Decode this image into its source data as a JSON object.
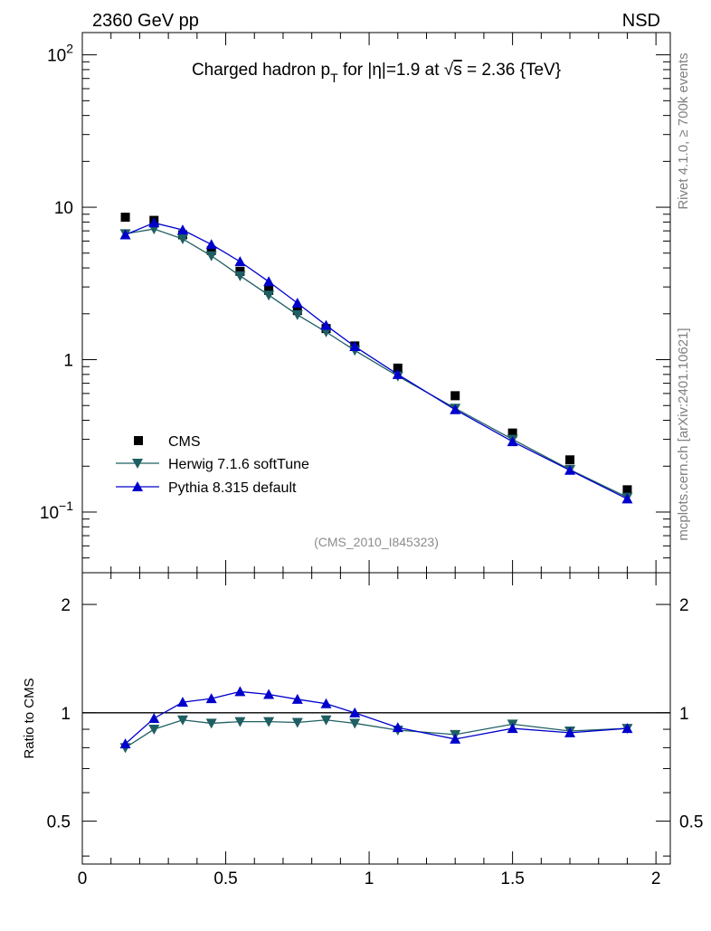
{
  "header": {
    "left": "2360 GeV pp",
    "right": "NSD"
  },
  "side_labels": {
    "rivet": "Rivet 4.1.0, ≥ 700k events",
    "mcplots": "mcplots.cern.ch [arXiv:2401.10621]"
  },
  "colors": {
    "cms": "#000000",
    "herwig": "#1f5f63",
    "pythia": "#0000cc",
    "ref_line": "#000000"
  },
  "chart_data": [
    {
      "type": "scatter",
      "panel": "main",
      "title": "Charged hadron pT for |η|=1.9 at √s = 2.36 {TeV}",
      "title_parts": {
        "a": "Charged hadron p",
        "sub": "T",
        "b": " for |η|=1.9 at ",
        "root": "√",
        "s": "s",
        "c": " = 2.36 {TeV}"
      },
      "reference": "(CMS_2010_I845323)",
      "yscale": "log",
      "xlim": [
        0,
        2.05
      ],
      "ylim": [
        0.04,
        140
      ],
      "yticks": [
        {
          "value": 100,
          "base": "10",
          "exp": "2"
        },
        {
          "value": 10,
          "base": "10",
          "exp": ""
        },
        {
          "value": 1,
          "base": "1",
          "exp": ""
        },
        {
          "value": 0.1,
          "base": "10",
          "exp": "−1"
        }
      ],
      "x": [
        0.15,
        0.25,
        0.35,
        0.45,
        0.55,
        0.65,
        0.75,
        0.85,
        0.95,
        1.1,
        1.3,
        1.5,
        1.7,
        1.9
      ],
      "series": [
        {
          "name": "CMS",
          "marker": "square",
          "line": false,
          "values": [
            8.6,
            8.2,
            6.6,
            5.2,
            3.8,
            2.85,
            2.1,
            1.6,
            1.23,
            0.88,
            0.58,
            0.33,
            0.22,
            0.14
          ]
        },
        {
          "name": "Herwig 7.1.6 softTune",
          "marker": "triangle-down",
          "line": true,
          "values": [
            6.7,
            7.2,
            6.2,
            4.8,
            3.55,
            2.65,
            1.97,
            1.52,
            1.15,
            0.78,
            0.48,
            0.3,
            0.19,
            0.125
          ]
        },
        {
          "name": "Pythia 8.315 default",
          "marker": "triangle-up",
          "line": true,
          "values": [
            6.6,
            7.9,
            7.1,
            5.7,
            4.4,
            3.25,
            2.35,
            1.68,
            1.22,
            0.8,
            0.47,
            0.29,
            0.188,
            0.122
          ]
        }
      ],
      "legend": "lower-left"
    },
    {
      "type": "line",
      "panel": "ratio",
      "ylabel": "Ratio to CMS",
      "yscale": "log",
      "xlim": [
        0,
        2.05
      ],
      "ylim": [
        0.38,
        2.45
      ],
      "yticks": [
        {
          "value": 0.5,
          "label": "0.5"
        },
        {
          "value": 1,
          "label": "1"
        },
        {
          "value": 2,
          "label": "2"
        }
      ],
      "xticks": [
        {
          "value": 0,
          "label": "0"
        },
        {
          "value": 0.5,
          "label": "0.5"
        },
        {
          "value": 1,
          "label": "1"
        },
        {
          "value": 1.5,
          "label": "1.5"
        },
        {
          "value": 2,
          "label": "2"
        }
      ],
      "reference_line": 1,
      "x": [
        0.15,
        0.25,
        0.35,
        0.45,
        0.55,
        0.65,
        0.75,
        0.85,
        0.95,
        1.1,
        1.3,
        1.5,
        1.7,
        1.9
      ],
      "series": [
        {
          "name": "Herwig 7.1.6 softTune",
          "marker": "triangle-down",
          "values": [
            0.8,
            0.9,
            0.955,
            0.935,
            0.945,
            0.945,
            0.94,
            0.955,
            0.935,
            0.895,
            0.87,
            0.93,
            0.89,
            0.905
          ]
        },
        {
          "name": "Pythia 8.315 default",
          "marker": "triangle-up",
          "values": [
            0.82,
            0.965,
            1.07,
            1.095,
            1.145,
            1.125,
            1.09,
            1.06,
            1.0,
            0.91,
            0.845,
            0.905,
            0.88,
            0.905
          ]
        }
      ]
    }
  ]
}
